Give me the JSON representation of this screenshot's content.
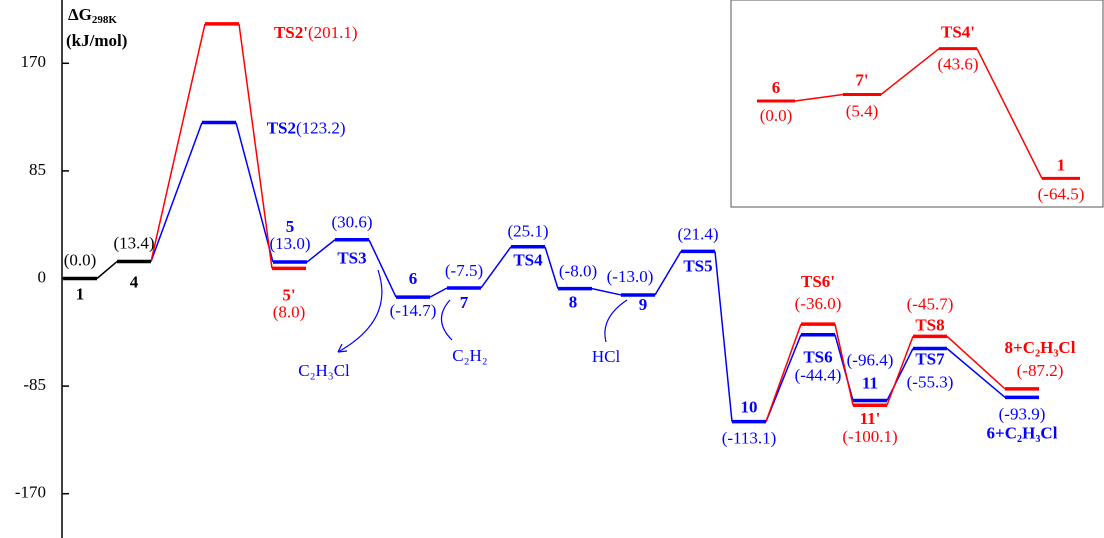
{
  "chart_data": {
    "type": "energy-profile",
    "y_label": "ΔG",
    "y_label_sub": "298K",
    "y_unit": "(kJ/mol)",
    "ylim": [
      -205,
      220
    ],
    "yticks": [
      -170,
      -85,
      0,
      85,
      170
    ],
    "series": [
      {
        "color": "#000000",
        "names": [
          "1",
          "4"
        ],
        "values": [
          0.0,
          13.4
        ],
        "value_labels": [
          "(0.0)",
          "(13.4)"
        ]
      },
      {
        "color": "#0000ff",
        "names": [
          "TS2",
          "5",
          "TS3",
          "6",
          "7",
          "TS4",
          "8",
          "9",
          "TS5",
          "10",
          "TS6",
          "11",
          "TS7",
          "6+C₂H₃Cl"
        ],
        "values": [
          123.2,
          13.0,
          30.6,
          -14.7,
          -7.5,
          25.1,
          -8.0,
          -13.0,
          21.4,
          -113.1,
          -44.4,
          -96.4,
          -55.3,
          -93.9
        ],
        "value_labels": [
          "(123.2)",
          "(13.0)",
          "(30.6)",
          "(-14.7)",
          "(-7.5)",
          "(25.1)",
          "(-8.0)",
          "(-13.0)",
          "(21.4)",
          "(-113.1)",
          "(-44.4)",
          "(-96.4)",
          "(-55.3)",
          "(-93.9)"
        ]
      },
      {
        "color": "#ff0000",
        "names": [
          "TS2'",
          "5'",
          "TS6'",
          "11'",
          "TS8",
          "8+C₂H₃Cl"
        ],
        "values": [
          201.1,
          8.0,
          -36.0,
          -100.1,
          -45.7,
          -87.2
        ],
        "value_labels": [
          "(201.1)",
          "(8.0)",
          "(-36.0)",
          "(-100.1)",
          "(-45.7)",
          "(-87.2)"
        ]
      }
    ],
    "annotations": [
      "C₂H₃Cl",
      "C₂H₂",
      "HCl"
    ],
    "inset": {
      "color": "#ff0000",
      "names": [
        "6",
        "7'",
        "TS4'",
        "1"
      ],
      "values": [
        0.0,
        5.4,
        43.6,
        -64.5
      ],
      "value_labels": [
        "(0.0)",
        "(5.4)",
        "(43.6)",
        "(-64.5)"
      ]
    }
  }
}
